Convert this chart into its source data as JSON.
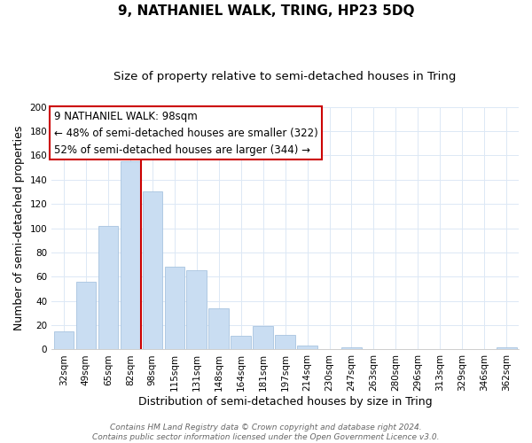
{
  "title": "9, NATHANIEL WALK, TRING, HP23 5DQ",
  "subtitle": "Size of property relative to semi-detached houses in Tring",
  "xlabel": "Distribution of semi-detached houses by size in Tring",
  "ylabel": "Number of semi-detached properties",
  "bar_labels": [
    "32sqm",
    "49sqm",
    "65sqm",
    "82sqm",
    "98sqm",
    "115sqm",
    "131sqm",
    "148sqm",
    "164sqm",
    "181sqm",
    "197sqm",
    "214sqm",
    "230sqm",
    "247sqm",
    "263sqm",
    "280sqm",
    "296sqm",
    "313sqm",
    "329sqm",
    "346sqm",
    "362sqm"
  ],
  "bar_values": [
    15,
    56,
    102,
    155,
    130,
    68,
    65,
    34,
    11,
    19,
    12,
    3,
    0,
    2,
    0,
    0,
    0,
    0,
    0,
    0,
    2
  ],
  "bar_color": "#c9ddf2",
  "bar_edge_color": "#a8c4e0",
  "vline_color": "#cc0000",
  "ylim": [
    0,
    200
  ],
  "yticks": [
    0,
    20,
    40,
    60,
    80,
    100,
    120,
    140,
    160,
    180,
    200
  ],
  "annotation_title": "9 NATHANIEL WALK: 98sqm",
  "annotation_line1": "← 48% of semi-detached houses are smaller (322)",
  "annotation_line2": "52% of semi-detached houses are larger (344) →",
  "annotation_box_color": "#ffffff",
  "annotation_box_edge": "#cc0000",
  "footer_line1": "Contains HM Land Registry data © Crown copyright and database right 2024.",
  "footer_line2": "Contains public sector information licensed under the Open Government Licence v3.0.",
  "title_fontsize": 11,
  "subtitle_fontsize": 9.5,
  "axis_label_fontsize": 9,
  "tick_fontsize": 7.5,
  "annotation_fontsize": 8.5,
  "footer_fontsize": 6.5,
  "background_color": "#ffffff",
  "grid_color": "#dce8f5"
}
